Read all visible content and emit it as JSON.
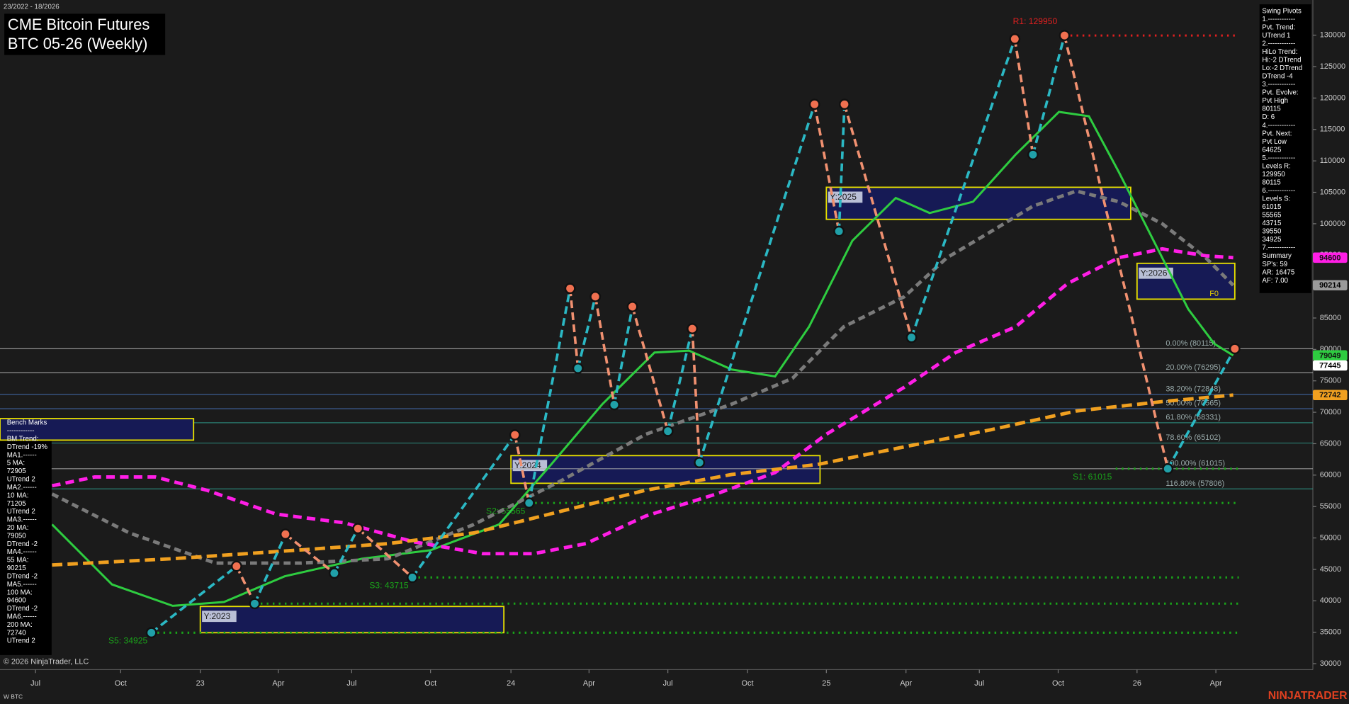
{
  "chart_data": {
    "type": "line",
    "title": "CME Bitcoin Futures",
    "subtitle": "BTC 05-26 (Weekly)",
    "date_range": "23/2022 - 18/2026",
    "copyright": "© 2026 NinjaTrader, LLC",
    "instrument": "W BTC",
    "brand": "NINJATRADER",
    "marker_text": "F0",
    "ylim": [
      29050,
      135600
    ],
    "yticks": [
      30000,
      35000,
      40000,
      45000,
      50000,
      55000,
      60000,
      65000,
      70000,
      75000,
      80000,
      85000,
      90000,
      95000,
      100000,
      105000,
      110000,
      115000,
      120000,
      125000,
      130000
    ],
    "xlim": [
      -0.45,
      16.2
    ],
    "xticks": [
      {
        "value": 0,
        "label": "Jul"
      },
      {
        "value": 1.08,
        "label": "Oct"
      },
      {
        "value": 2.09,
        "label": "23"
      },
      {
        "value": 3.08,
        "label": "Apr"
      },
      {
        "value": 4.01,
        "label": "Jul"
      },
      {
        "value": 5.01,
        "label": "Oct"
      },
      {
        "value": 6.03,
        "label": "24"
      },
      {
        "value": 7.02,
        "label": "Apr"
      },
      {
        "value": 8.02,
        "label": "Jul"
      },
      {
        "value": 9.03,
        "label": "Oct"
      },
      {
        "value": 10.03,
        "label": "25"
      },
      {
        "value": 11.04,
        "label": "Apr"
      },
      {
        "value": 11.97,
        "label": "Jul"
      },
      {
        "value": 12.97,
        "label": "Oct"
      },
      {
        "value": 13.97,
        "label": "26"
      },
      {
        "value": 14.97,
        "label": "Apr"
      }
    ],
    "series": [
      {
        "color": "#2ecc40",
        "dash": "",
        "x": [
          0.21,
          0.97,
          1.74,
          2.39,
          3.16,
          4.14,
          5.01,
          5.88,
          6.54,
          7.19,
          7.85,
          8.29,
          8.83,
          9.38,
          9.81,
          10.36,
          10.91,
          11.34,
          11.89,
          12.43,
          12.98,
          13.36,
          13.74,
          14.18,
          14.62,
          14.95,
          15.19
        ],
        "values": [
          52150,
          42600,
          39200,
          39800,
          43900,
          46700,
          48050,
          52150,
          61700,
          71300,
          79500,
          79800,
          76800,
          75700,
          83600,
          97300,
          104100,
          101700,
          103500,
          111000,
          117800,
          117100,
          108200,
          97300,
          86400,
          80900,
          79049
        ]
      },
      {
        "color": "#7a7a7a",
        "dash": "8 5",
        "x": [
          0.21,
          1.19,
          2.28,
          3.37,
          4.47,
          5.56,
          6.65,
          7.74,
          8.83,
          9.6,
          10.25,
          11.02,
          11.56,
          12.11,
          12.65,
          13.2,
          13.74,
          14.29,
          14.84,
          15.19
        ],
        "values": [
          57000,
          50800,
          46000,
          46000,
          46700,
          52150,
          59000,
          66500,
          71300,
          75400,
          83600,
          88400,
          94600,
          98700,
          102800,
          105200,
          103500,
          100000,
          94600,
          90214
        ]
      },
      {
        "color": "#ff1ee6",
        "dash": "10 6",
        "x": [
          0.21,
          0.75,
          1.52,
          2.17,
          3.05,
          3.92,
          4.79,
          5.67,
          6.32,
          6.98,
          7.74,
          8.61,
          9.38,
          10.03,
          11.02,
          11.67,
          12.43,
          13.09,
          13.74,
          14.29,
          14.84,
          15.19
        ],
        "values": [
          58300,
          59700,
          59700,
          57600,
          53800,
          52400,
          49400,
          47500,
          47500,
          49100,
          53500,
          56900,
          60400,
          66500,
          74000,
          79500,
          83600,
          90500,
          94600,
          96000,
          94900,
          94600
        ]
      },
      {
        "color": "#f0a020",
        "dash": "12 6",
        "x": [
          0.21,
          1.74,
          3.37,
          4.47,
          5.56,
          6.65,
          7.74,
          8.83,
          9.92,
          11.02,
          12.11,
          13.2,
          14.29,
          15.19
        ],
        "values": [
          45700,
          46700,
          48100,
          49100,
          50800,
          54200,
          57600,
          60100,
          61700,
          64500,
          67200,
          70200,
          71700,
          72742
        ]
      }
    ],
    "pivots": {
      "x": [
        1.47,
        2.55,
        2.78,
        3.17,
        3.79,
        4.09,
        4.78,
        6.08,
        6.26,
        6.78,
        6.88,
        7.1,
        7.34,
        7.57,
        8.02,
        8.33,
        8.42,
        9.88,
        10.19,
        10.26,
        11.11,
        12.42,
        12.65,
        13.05,
        14.36,
        15.21
      ],
      "values": [
        34925,
        45500,
        39550,
        50600,
        44400,
        51500,
        43715,
        66400,
        55565,
        89700,
        77000,
        88400,
        71200,
        86800,
        67000,
        83300,
        62000,
        119000,
        98800,
        119000,
        81900,
        129400,
        111000,
        129950,
        61015,
        80115
      ]
    },
    "levels": [
      {
        "label": "R1: 129950",
        "value": 129950,
        "color": "#e02020",
        "from": 13.05
      },
      {
        "label": "S1: 61015",
        "value": 61015,
        "color": "#1aa31a",
        "from": 13.7
      },
      {
        "label": "S2: 55565",
        "value": 55565,
        "color": "#1aa31a",
        "from": 6.26
      },
      {
        "label": "S3: 43715",
        "value": 43715,
        "color": "#1aa31a",
        "from": 4.78
      },
      {
        "value": 39550,
        "color": "#1aa31a",
        "from": 2.78
      },
      {
        "label": "S5: 34925",
        "value": 34925,
        "color": "#1aa31a",
        "from": 1.47
      }
    ],
    "fib": [
      {
        "label": "0.00% (80115)",
        "value": 80115
      },
      {
        "label": "20.00% (76295)",
        "value": 76295
      },
      {
        "label": "38.20% (72848)",
        "value": 72848
      },
      {
        "label": "50.00% (70565)",
        "value": 70565
      },
      {
        "label": "61.80% (68331)",
        "value": 68331
      },
      {
        "label": "78.60% (65102)",
        "value": 65102
      },
      {
        "label": "100.00% (61015)",
        "value": 61015
      },
      {
        "label": "116.80% (57806)",
        "value": 57806
      }
    ],
    "zones": [
      {
        "label": "Y:2023",
        "x": [
          2.09,
          5.94
        ],
        "range": [
          34925,
          39100
        ]
      },
      {
        "label": "Y:2024",
        "x": [
          6.03,
          9.95
        ],
        "range": [
          58700,
          63100
        ]
      },
      {
        "label": "Y:2025",
        "x": [
          10.03,
          13.89
        ],
        "range": [
          100700,
          105800
        ]
      },
      {
        "label": "Y:2026",
        "x": [
          13.97,
          15.21
        ],
        "range": [
          88000,
          93700
        ]
      }
    ],
    "price_tags": [
      {
        "value": 94600,
        "color": "#ff1ee6"
      },
      {
        "value": 90214,
        "color": "#9a9a9a"
      },
      {
        "value": 79049,
        "color": "#2ecc40"
      },
      {
        "value": 77445,
        "color": "#ffffff"
      },
      {
        "value": 72742,
        "color": "#f0a020"
      }
    ],
    "left_panel": [
      "Bench Marks",
      "------------",
      "BM Trend:",
      "DTrend -19%",
      "MA1.------",
      "5 MA:",
      "72905",
      "UTrend 2",
      "MA2.------",
      "10 MA:",
      "71205",
      "UTrend 2",
      "MA3.------",
      "20 MA:",
      "79050",
      "DTrend -2",
      "MA4.------",
      "55 MA:",
      "90215",
      "DTrend -2",
      "MA5.------",
      "100 MA:",
      "94600",
      "DTrend -2",
      "MA6.------",
      "200 MA:",
      "72740",
      "UTrend 2"
    ],
    "right_panel": [
      "Swing Pivots",
      "1.------------",
      "Pvt. Trend:",
      "UTrend 1",
      "2.------------",
      "HiLo Trend:",
      "Hi:-2 DTrend",
      "Lo:-2 DTrend",
      "DTrend -4",
      "3.------------",
      "Pvt. Evolve:",
      "Pvt High",
      "80115",
      "D: 6",
      "4.------------",
      "Pvt. Next:",
      "Pvt Low",
      "64625",
      "5.------------",
      "Levels R:",
      "129950",
      "80115",
      "6.------------",
      "Levels S:",
      "61015",
      "55565",
      "43715",
      "39550",
      "34925",
      "7.------------",
      "Summary",
      "SP's: 59",
      "AR: 16475",
      "AF: 7.00"
    ]
  }
}
